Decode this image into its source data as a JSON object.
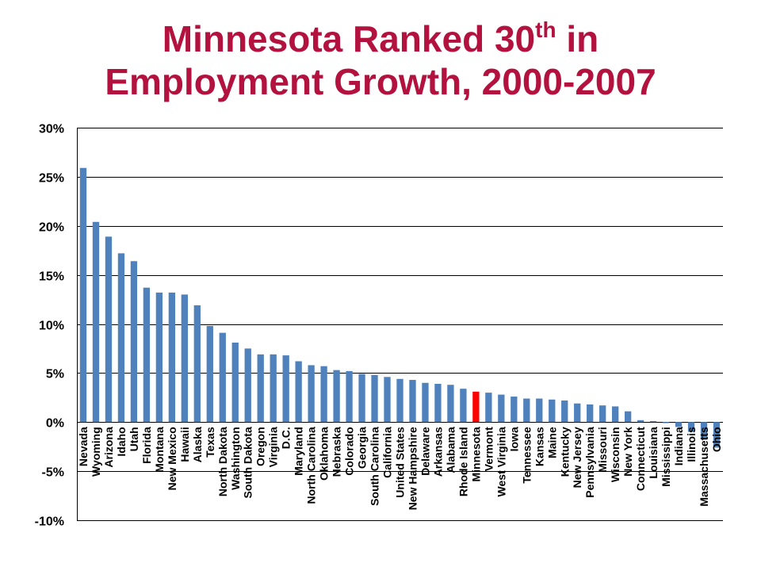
{
  "title": {
    "line1_prefix": "Minnesota Ranked 30",
    "line1_sup": "th",
    "line1_suffix": " in",
    "line2": "Employment Growth, 2000-2007"
  },
  "colors": {
    "title": "#b3123f",
    "bar": "#4f81bd",
    "highlight": "#ff0000",
    "grid": "#000000"
  },
  "chart_data": {
    "type": "bar",
    "title": "Minnesota Ranked 30th in Employment Growth, 2000-2007",
    "xlabel": "",
    "ylabel": "",
    "ylim": [
      -10,
      30
    ],
    "yticks": [
      30,
      25,
      20,
      15,
      10,
      5,
      0,
      -5,
      -10
    ],
    "ytick_labels": [
      "30%",
      "25%",
      "20%",
      "15%",
      "10%",
      "5%",
      "0%",
      "-5%",
      "-10%"
    ],
    "grid": true,
    "highlight": "Minnesota",
    "categories": [
      "Nevada",
      "Wyoming",
      "Arizona",
      "Idaho",
      "Utah",
      "Florida",
      "Montana",
      "New Mexico",
      "Hawaii",
      "Alaska",
      "Texas",
      "North Dakota",
      "Washington",
      "South Dakota",
      "Oregon",
      "Virginia",
      "D.C.",
      "Maryland",
      "North Carolina",
      "Oklahoma",
      "Nebraska",
      "Colorado",
      "Georgia",
      "South Carolina",
      "California",
      "United States",
      "New Hampshire",
      "Delaware",
      "Arkansas",
      "Alabama",
      "Rhode Island",
      "Minnesota",
      "Vermont",
      "West Virginia",
      "Iowa",
      "Tennessee",
      "Kansas",
      "Maine",
      "Kentucky",
      "New Jersey",
      "Pennsylvania",
      "Missouri",
      "Wisconsin",
      "New York",
      "Connecticut",
      "Louisiana",
      "Mississippi",
      "Indiana",
      "Illinois",
      "Massachusetts",
      "Ohio"
    ],
    "values": [
      25.9,
      20.4,
      18.9,
      17.2,
      16.4,
      13.7,
      13.2,
      13.2,
      13.0,
      11.9,
      9.8,
      9.1,
      8.1,
      7.5,
      6.9,
      6.9,
      6.8,
      6.2,
      5.8,
      5.7,
      5.3,
      5.2,
      4.9,
      4.8,
      4.6,
      4.4,
      4.3,
      4.0,
      3.9,
      3.8,
      3.4,
      3.1,
      3.0,
      2.8,
      2.6,
      2.4,
      2.4,
      2.3,
      2.2,
      1.9,
      1.8,
      1.7,
      1.6,
      1.1,
      0.2,
      0.1,
      -0.1,
      -0.5,
      -1.0,
      -1.7,
      -2.6
    ]
  }
}
